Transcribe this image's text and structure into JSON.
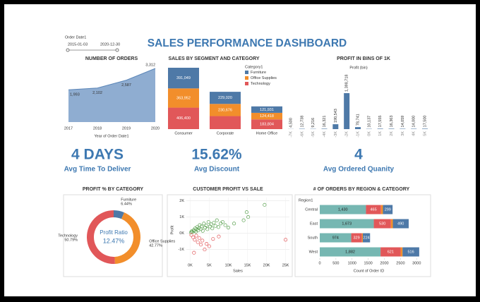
{
  "title": "SALES PERFORMANCE DASHBOARD",
  "filter": {
    "label": "Order Date1",
    "start": "2015-01-03",
    "end": "2020-12-30"
  },
  "kpis": [
    {
      "value": "4 DAYS",
      "label": "Avg Time To Deliver"
    },
    {
      "value": "15.62%",
      "label": "Avg Discount"
    },
    {
      "value": "4",
      "label": "Avg Ordered Quanity"
    }
  ],
  "chart_data": [
    {
      "type": "area",
      "title": "NUMBER OF ORDERS",
      "x_label": "Year of Order Date1",
      "categories": [
        "2017",
        "2018",
        "2019",
        "2020"
      ],
      "values": [
        1993,
        2102,
        2587,
        3312
      ],
      "value_labels": [
        "1,993",
        "2,102",
        "2,587",
        "3,312"
      ],
      "color": "#7b9fc9"
    },
    {
      "type": "stacked_bar",
      "title": "SALES BY SEGMENT AND CATEGORY",
      "legend_title": "Category1",
      "categories": [
        "Consumer",
        "Corporate",
        "Home Office"
      ],
      "series": [
        {
          "name": "Furniture",
          "color": "#4e79a7",
          "values": [
            391049,
            229020,
            121931
          ],
          "value_labels": [
            "391,049",
            "229,020",
            "121,931"
          ]
        },
        {
          "name": "Office Supplies",
          "color": "#f28e2b",
          "values": [
            363952,
            230676,
            124418
          ],
          "value_labels": [
            "363,952",
            "230,676",
            "124,418"
          ]
        },
        {
          "name": "Technology",
          "color": "#e15759",
          "values": [
            406400,
            246450,
            183804
          ],
          "value_labels": [
            "406,400",
            null,
            "183,804"
          ]
        }
      ]
    },
    {
      "type": "bar",
      "title": "PROFIT IN BINS OF 1K",
      "subtitle": "Profit (bin)",
      "color": "#4e79a7",
      "categories": [
        "-7K",
        "-6K",
        "-5K",
        "-4K",
        "-3K",
        "-2K",
        "-1K",
        "0K",
        "1K",
        "2K",
        "3K",
        "4K",
        "5K"
      ],
      "values": [
        4500,
        12738,
        9216,
        16321,
        190543,
        1398718,
        78741,
        10137,
        17555,
        16363,
        14059,
        14000,
        17500
      ],
      "value_labels": [
        "4,500",
        "12,738",
        "9,216",
        "16,321",
        "190,543",
        "1,398,718",
        "78,741",
        "10,137",
        "17,555",
        "16,363",
        "14,059",
        "14,000",
        "17,500"
      ]
    },
    {
      "type": "donut",
      "title": "PROFIT % BY CATEGORY",
      "center_title": "Profit Ratio",
      "center_value": "12.47%",
      "categories": [
        "Furniture",
        "Office Supplies",
        "Technology"
      ],
      "values": [
        6.44,
        42.77,
        50.79
      ],
      "value_labels": [
        "6.44%",
        "42.77%",
        "50.79%"
      ],
      "colors": [
        "#4e79a7",
        "#f28e2b",
        "#e15759"
      ]
    },
    {
      "type": "scatter",
      "title": "CUSTOMER PROFIT VS SALE",
      "x_label": "Sales",
      "y_label": "Profit",
      "x": [
        200,
        400,
        600,
        900,
        1100,
        1300,
        1500,
        1700,
        1900,
        2100,
        2300,
        2500,
        2800,
        3000,
        3300,
        3600,
        3900,
        4200,
        4500,
        4800,
        5200,
        5500,
        5800,
        6200,
        6600,
        7000,
        7400,
        8000,
        8500,
        9200,
        10000,
        11500,
        14000,
        15200,
        14800,
        19500,
        300,
        800,
        1200,
        1600,
        2000,
        2400,
        2800,
        3200,
        3800,
        4300,
        5000,
        6000,
        7500,
        1000,
        25000
      ],
      "y": [
        50,
        120,
        80,
        200,
        150,
        300,
        100,
        250,
        400,
        180,
        320,
        500,
        260,
        420,
        150,
        600,
        350,
        480,
        250,
        700,
        420,
        550,
        300,
        650,
        450,
        800,
        380,
        600,
        700,
        500,
        350,
        600,
        800,
        1000,
        1300,
        1750,
        -100,
        -250,
        -400,
        -150,
        -550,
        -300,
        -700,
        -450,
        -1000,
        -650,
        -800,
        -350,
        -200,
        -1200,
        -400
      ],
      "color_positive": "#59a14f",
      "color_negative": "#e15759",
      "grid": true,
      "xlim": [
        -1000,
        26000
      ],
      "ylim": [
        -1800,
        2200
      ],
      "xticks": [
        {
          "value": 0,
          "label": "0K"
        },
        {
          "value": 5000,
          "label": "5K"
        },
        {
          "value": 10000,
          "label": "10K"
        },
        {
          "value": 15000,
          "label": "15K"
        },
        {
          "value": 20000,
          "label": "20K"
        },
        {
          "value": 25000,
          "label": "25K"
        }
      ],
      "yticks": [
        {
          "value": -1000,
          "label": "-1K"
        },
        {
          "value": 0,
          "label": "0K"
        },
        {
          "value": 1000,
          "label": "1K"
        },
        {
          "value": 2000,
          "label": "2K"
        }
      ]
    },
    {
      "type": "hbar_stacked",
      "title": "# OF ORDERS BY REGION & CATEGORY",
      "legend_title": "Region1",
      "x_label": "Count of Order ID",
      "categories": [
        "Central",
        "East",
        "South",
        "West"
      ],
      "series": [
        {
          "color": "#76b7b2",
          "values": [
            1430,
            1673,
            974,
            1882
          ],
          "value_labels": [
            "1,430",
            "1,673",
            "974",
            "1,882"
          ]
        },
        {
          "color": "#e15759",
          "values": [
            465,
            530,
            329,
            621
          ],
          "value_labels": [
            "465",
            "530",
            "329",
            "621"
          ]
        },
        {
          "color": "#f28e2b",
          "values": [
            60,
            60,
            30,
            60
          ],
          "value_labels": [
            null,
            null,
            null,
            null
          ]
        },
        {
          "color": "#4e79a7",
          "values": [
            299,
            490,
            224,
            516
          ],
          "value_labels": [
            "299",
            "490",
            "224",
            "516"
          ]
        }
      ],
      "xlim": [
        0,
        3300
      ],
      "xticks": [
        0,
        500,
        1000,
        1500,
        2000,
        2500,
        3000
      ]
    }
  ]
}
